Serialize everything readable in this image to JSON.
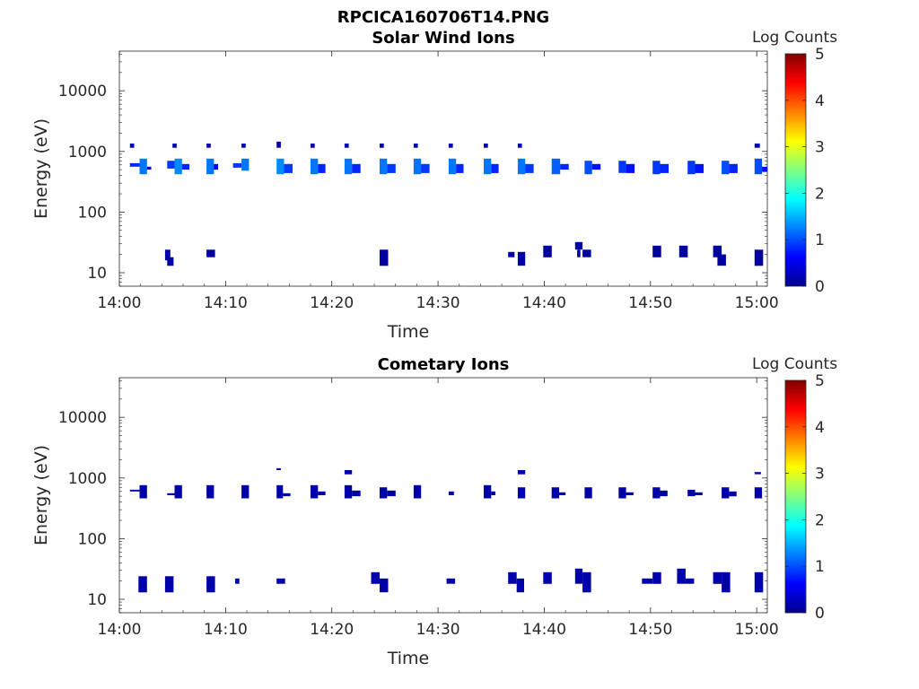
{
  "figure_title": "RPCICA160706T14.PNG",
  "colors": {
    "colorbar_stops": [
      "#00008f",
      "#0000ff",
      "#0080ff",
      "#00ffff",
      "#80ff80",
      "#ffff00",
      "#ff8000",
      "#ff0000",
      "#800000"
    ]
  },
  "chart_data": [
    {
      "type": "heatmap",
      "title": "Solar Wind Ions",
      "xlabel": "Time",
      "ylabel": "Energy (eV)",
      "y_scale": "log",
      "ylim": [
        6,
        45000
      ],
      "xlim": [
        0,
        61
      ],
      "x_ticks": [
        0,
        10,
        20,
        30,
        40,
        50,
        60
      ],
      "x_tick_labels": [
        "14:00",
        "14:10",
        "14:20",
        "14:30",
        "14:40",
        "14:50",
        "15:00"
      ],
      "y_ticks": [
        10,
        100,
        1000,
        10000
      ],
      "y_tick_labels": [
        "10",
        "100",
        "1000",
        "10000"
      ],
      "colorbar": {
        "label": "Log Counts",
        "range": [
          0,
          5
        ],
        "ticks": [
          "0",
          "1",
          "2",
          "3",
          "4",
          "5"
        ]
      },
      "cells": [
        [
          1.0,
          1.4,
          1350,
          1150,
          0.2
        ],
        [
          5.0,
          5.4,
          1350,
          1150,
          0.2
        ],
        [
          8.2,
          8.6,
          1350,
          1150,
          0.2
        ],
        [
          11.5,
          11.9,
          1350,
          1150,
          0.2
        ],
        [
          14.8,
          15.2,
          1450,
          1150,
          0.2
        ],
        [
          18.0,
          18.4,
          1350,
          1150,
          0.2
        ],
        [
          21.2,
          21.6,
          1350,
          1150,
          0.2
        ],
        [
          24.5,
          24.9,
          1350,
          1150,
          0.2
        ],
        [
          27.7,
          28.1,
          1350,
          1150,
          0.2
        ],
        [
          31.0,
          31.4,
          1350,
          1150,
          0.2
        ],
        [
          34.3,
          34.7,
          1350,
          1150,
          0.2
        ],
        [
          37.5,
          37.9,
          1350,
          1150,
          0.2
        ],
        [
          59.8,
          60.3,
          1350,
          1150,
          0.2
        ],
        [
          1.0,
          1.9,
          640,
          560,
          0.8
        ],
        [
          1.9,
          2.6,
          760,
          420,
          1.2
        ],
        [
          2.6,
          3.0,
          560,
          500,
          0.4
        ],
        [
          4.5,
          5.2,
          700,
          520,
          0.9
        ],
        [
          5.2,
          5.9,
          760,
          420,
          1.3
        ],
        [
          5.9,
          6.6,
          620,
          500,
          0.8
        ],
        [
          8.2,
          8.9,
          760,
          420,
          1.2
        ],
        [
          8.9,
          9.3,
          620,
          500,
          0.5
        ],
        [
          10.7,
          11.5,
          640,
          540,
          0.9
        ],
        [
          11.5,
          12.2,
          760,
          480,
          1.2
        ],
        [
          14.8,
          15.5,
          760,
          420,
          1.3
        ],
        [
          15.5,
          16.3,
          620,
          440,
          0.9
        ],
        [
          18.0,
          18.7,
          760,
          420,
          1.2
        ],
        [
          18.7,
          19.4,
          620,
          440,
          0.8
        ],
        [
          21.2,
          21.9,
          760,
          420,
          1.2
        ],
        [
          21.9,
          22.7,
          620,
          440,
          0.8
        ],
        [
          24.5,
          25.2,
          760,
          420,
          1.2
        ],
        [
          25.2,
          26.0,
          620,
          440,
          0.9
        ],
        [
          27.7,
          28.4,
          760,
          420,
          1.2
        ],
        [
          28.4,
          29.2,
          620,
          440,
          0.9
        ],
        [
          31.0,
          31.7,
          760,
          420,
          1.2
        ],
        [
          31.7,
          32.4,
          620,
          440,
          0.8
        ],
        [
          34.3,
          35.0,
          760,
          420,
          1.2
        ],
        [
          35.0,
          35.7,
          620,
          440,
          0.8
        ],
        [
          37.5,
          38.2,
          760,
          420,
          1.2
        ],
        [
          38.2,
          39.0,
          620,
          440,
          0.9
        ],
        [
          40.7,
          41.5,
          760,
          420,
          1.1
        ],
        [
          41.5,
          42.3,
          620,
          500,
          0.8
        ],
        [
          43.8,
          44.5,
          700,
          420,
          1.0
        ],
        [
          44.5,
          45.3,
          620,
          500,
          0.7
        ],
        [
          47.0,
          47.7,
          700,
          440,
          0.9
        ],
        [
          47.7,
          48.5,
          620,
          440,
          0.7
        ],
        [
          50.2,
          50.9,
          700,
          420,
          0.9
        ],
        [
          50.9,
          51.7,
          620,
          440,
          0.8
        ],
        [
          53.5,
          54.2,
          700,
          420,
          0.9
        ],
        [
          54.2,
          55.0,
          620,
          440,
          0.7
        ],
        [
          56.7,
          57.4,
          700,
          420,
          1.0
        ],
        [
          57.4,
          58.2,
          620,
          440,
          0.8
        ],
        [
          59.8,
          60.5,
          760,
          420,
          1.0
        ],
        [
          60.5,
          61.0,
          560,
          460,
          0.7
        ],
        [
          4.3,
          4.8,
          24,
          16,
          0.1
        ],
        [
          4.5,
          5.1,
          18,
          13,
          0.1
        ],
        [
          8.2,
          9.0,
          24,
          18,
          0.1
        ],
        [
          24.5,
          25.3,
          24,
          13,
          0.1
        ],
        [
          36.6,
          37.2,
          22,
          18,
          0.1
        ],
        [
          37.5,
          38.2,
          22,
          13,
          0.1
        ],
        [
          39.9,
          40.7,
          28,
          18,
          0.1
        ],
        [
          42.9,
          43.6,
          32,
          24,
          0.1
        ],
        [
          43.1,
          43.4,
          24,
          18,
          0.1
        ],
        [
          43.6,
          44.4,
          24,
          18,
          0.1
        ],
        [
          50.2,
          51.0,
          28,
          18,
          0.1
        ],
        [
          52.7,
          53.5,
          28,
          18,
          0.1
        ],
        [
          55.9,
          56.7,
          28,
          18,
          0.1
        ],
        [
          56.3,
          57.1,
          20,
          13,
          0.1
        ],
        [
          59.8,
          60.6,
          24,
          13,
          0.1
        ]
      ]
    },
    {
      "type": "heatmap",
      "title": "Cometary Ions",
      "xlabel": "Time",
      "ylabel": "Energy (eV)",
      "y_scale": "log",
      "ylim": [
        6,
        45000
      ],
      "xlim": [
        0,
        61
      ],
      "x_ticks": [
        0,
        10,
        20,
        30,
        40,
        50,
        60
      ],
      "x_tick_labels": [
        "14:00",
        "14:10",
        "14:20",
        "14:30",
        "14:40",
        "14:50",
        "15:00"
      ],
      "y_ticks": [
        10,
        100,
        1000,
        10000
      ],
      "y_tick_labels": [
        "10",
        "100",
        "1000",
        "10000"
      ],
      "colorbar": {
        "label": "Log Counts",
        "range": [
          0,
          5
        ],
        "ticks": [
          "0",
          "1",
          "2",
          "3",
          "4",
          "5"
        ]
      },
      "cells": [
        [
          1.0,
          1.9,
          640,
          600,
          0.2
        ],
        [
          1.9,
          2.6,
          760,
          460,
          0.15
        ],
        [
          4.5,
          5.2,
          560,
          520,
          0.15
        ],
        [
          5.2,
          5.9,
          760,
          460,
          0.15
        ],
        [
          8.2,
          8.9,
          760,
          460,
          0.15
        ],
        [
          11.5,
          12.2,
          760,
          460,
          0.15
        ],
        [
          14.8,
          15.2,
          1450,
          1350,
          0.15
        ],
        [
          14.8,
          15.4,
          760,
          460,
          0.15
        ],
        [
          15.4,
          16.1,
          560,
          500,
          0.15
        ],
        [
          18.0,
          18.7,
          760,
          460,
          0.15
        ],
        [
          18.7,
          19.4,
          600,
          520,
          0.15
        ],
        [
          21.2,
          21.9,
          1350,
          1150,
          0.15
        ],
        [
          21.2,
          21.9,
          760,
          460,
          0.15
        ],
        [
          21.9,
          22.7,
          620,
          500,
          0.15
        ],
        [
          24.5,
          25.2,
          700,
          460,
          0.15
        ],
        [
          25.2,
          26.0,
          620,
          500,
          0.15
        ],
        [
          27.7,
          28.4,
          760,
          460,
          0.15
        ],
        [
          31.0,
          31.5,
          600,
          520,
          0.15
        ],
        [
          34.3,
          35.0,
          760,
          460,
          0.15
        ],
        [
          35.0,
          35.4,
          600,
          520,
          0.15
        ],
        [
          37.5,
          38.2,
          1350,
          1150,
          0.15
        ],
        [
          37.5,
          38.2,
          700,
          460,
          0.15
        ],
        [
          40.7,
          41.4,
          700,
          460,
          0.15
        ],
        [
          41.4,
          42.0,
          580,
          520,
          0.15
        ],
        [
          43.8,
          44.5,
          700,
          460,
          0.15
        ],
        [
          47.0,
          47.7,
          700,
          460,
          0.15
        ],
        [
          47.7,
          48.4,
          580,
          520,
          0.15
        ],
        [
          50.2,
          50.9,
          700,
          460,
          0.15
        ],
        [
          50.9,
          51.6,
          620,
          500,
          0.15
        ],
        [
          53.5,
          54.2,
          640,
          500,
          0.15
        ],
        [
          54.2,
          54.9,
          580,
          520,
          0.15
        ],
        [
          56.7,
          57.4,
          700,
          460,
          0.15
        ],
        [
          57.4,
          58.1,
          600,
          500,
          0.15
        ],
        [
          59.8,
          60.4,
          1250,
          1150,
          0.15
        ],
        [
          59.8,
          60.5,
          700,
          460,
          0.15
        ],
        [
          1.8,
          2.6,
          24,
          13,
          0.15
        ],
        [
          4.3,
          5.1,
          24,
          13,
          0.15
        ],
        [
          8.2,
          9.0,
          24,
          13,
          0.15
        ],
        [
          10.9,
          11.3,
          22,
          18,
          0.15
        ],
        [
          14.8,
          15.6,
          22,
          18,
          0.15
        ],
        [
          23.7,
          24.5,
          28,
          18,
          0.15
        ],
        [
          24.5,
          25.3,
          22,
          13,
          0.15
        ],
        [
          30.8,
          31.6,
          22,
          18,
          0.15
        ],
        [
          36.6,
          37.4,
          28,
          18,
          0.15
        ],
        [
          37.4,
          38.1,
          22,
          13,
          0.15
        ],
        [
          39.9,
          40.7,
          28,
          18,
          0.15
        ],
        [
          42.9,
          43.6,
          32,
          18,
          0.15
        ],
        [
          43.6,
          44.4,
          28,
          13,
          0.15
        ],
        [
          49.2,
          50.2,
          22,
          18,
          0.15
        ],
        [
          50.2,
          51.0,
          28,
          18,
          0.15
        ],
        [
          52.5,
          53.3,
          32,
          18,
          0.15
        ],
        [
          53.3,
          54.1,
          22,
          18,
          0.15
        ],
        [
          55.9,
          56.7,
          28,
          18,
          0.15
        ],
        [
          56.7,
          57.5,
          28,
          13,
          0.15
        ],
        [
          59.8,
          60.6,
          28,
          13,
          0.15
        ]
      ]
    }
  ]
}
